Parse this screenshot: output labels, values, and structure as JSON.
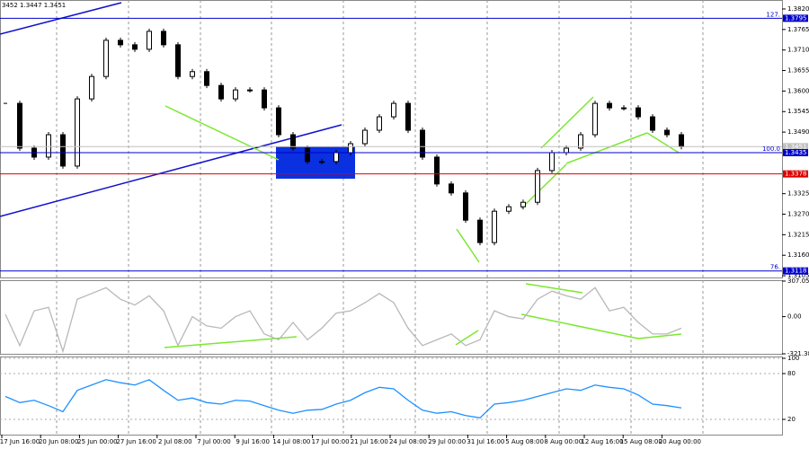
{
  "header": "3452 1.3447 1.3451",
  "time_axis": [
    "17 Jun 16:00",
    "20 Jun 08:00",
    "25 Jun 00:00",
    "27 Jun 16:00",
    "2 Jul 08:00",
    "7 Jul 00:00",
    "9 Jul 16:00",
    "14 Jul 08:00",
    "17 Jul 00:00",
    "21 Jul 16:00",
    "24 Jul 08:00",
    "29 Jul 00:00",
    "31 Jul 16:00",
    "5 Aug 08:00",
    "8 Aug 00:00",
    "12 Aug 16:00",
    "15 Aug 08:00",
    "20 Aug 00:00"
  ],
  "chart_data": [
    {
      "type": "candlestick",
      "color": "#000000",
      "values": [
        1.3567,
        1.3447,
        1.3423,
        1.3483,
        1.3399,
        1.3579,
        1.3639,
        1.3736,
        1.3724,
        1.3712,
        1.376,
        1.3724,
        1.3639,
        1.3652,
        1.3615,
        1.3579,
        1.3603,
        1.3603,
        1.3555,
        1.3483,
        1.3447,
        1.3411,
        1.3411,
        1.3435,
        1.3459,
        1.3495,
        1.3531,
        1.3567,
        1.3495,
        1.3423,
        1.3351,
        1.3327,
        1.3254,
        1.3194,
        1.3278,
        1.329,
        1.3302,
        1.3387,
        1.3435,
        1.3447,
        1.3483,
        1.3567,
        1.3555,
        1.3555,
        1.3531,
        1.3495,
        1.3483,
        1.3451
      ],
      "ylim": [
        1.3098,
        1.3844
      ],
      "yticks": [
        {
          "value": 1.382,
          "label": "1.3820"
        },
        1.3765,
        {
          "value": 1.371,
          "label": "1.3710"
        },
        1.3655,
        {
          "value": 1.36,
          "label": "1.3600"
        },
        1.3545,
        {
          "value": 1.349,
          "label": "1.3490"
        },
        1.3325,
        {
          "value": 1.327,
          "label": "1.3270"
        },
        1.3215,
        {
          "value": 1.316,
          "label": "1.3160"
        },
        1.3105
      ],
      "levels": [
        {
          "value": 1.3795,
          "label": "1.3795",
          "tag": "127.",
          "color": "#0000cc"
        },
        {
          "value": 1.3451,
          "label": "1.3451",
          "color": "#c0c0c0"
        },
        {
          "value": 1.3435,
          "label": "1.3435",
          "tag": "100.0",
          "color": "#0000cc"
        },
        {
          "value": 1.3378,
          "label": "1.3378",
          "color": "#dd0000"
        },
        {
          "value": 1.3118,
          "label": "1.3118",
          "tag": "76.",
          "color": "#0000cc"
        }
      ]
    },
    {
      "type": "line",
      "color": "#b8b8b8",
      "values": [
        20,
        -250,
        50,
        80,
        -300,
        150,
        200,
        250,
        150,
        100,
        180,
        50,
        -250,
        0,
        -80,
        -100,
        0,
        50,
        -150,
        -200,
        -50,
        -200,
        -100,
        30,
        50,
        120,
        200,
        120,
        -100,
        -250,
        -200,
        -150,
        -250,
        -200,
        50,
        0,
        -20,
        150,
        220,
        180,
        150,
        250,
        50,
        80,
        -50,
        -150,
        -150,
        -100
      ],
      "ylim": [
        -321.389,
        307.0503
      ],
      "yticks": [
        307.0503,
        {
          "value": 0,
          "label": "0.00"
        },
        -321.389
      ]
    },
    {
      "type": "line",
      "color": "#1e90ff",
      "values": [
        50,
        42,
        45,
        38,
        30,
        58,
        65,
        72,
        68,
        65,
        72,
        58,
        45,
        48,
        42,
        40,
        45,
        44,
        38,
        32,
        28,
        32,
        33,
        40,
        45,
        55,
        62,
        60,
        45,
        32,
        28,
        30,
        25,
        22,
        40,
        42,
        45,
        50,
        55,
        60,
        58,
        65,
        62,
        60,
        52,
        40,
        38,
        35
      ],
      "ylim": [
        0,
        100
      ],
      "yticks": [
        100,
        80,
        20
      ]
    }
  ]
}
